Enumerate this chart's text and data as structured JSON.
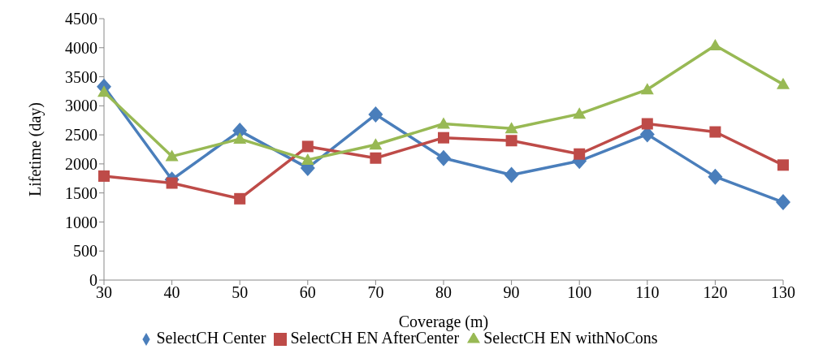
{
  "chart_data": {
    "type": "line",
    "xlabel": "Coverage (m)",
    "ylabel": "Lifetime (day)",
    "categories": [
      "30",
      "40",
      "50",
      "60",
      "70",
      "80",
      "90",
      "100",
      "110",
      "120",
      "130"
    ],
    "series": [
      {
        "name": "SelectCH Center",
        "color": "#4a7ebb",
        "marker": "diamond",
        "values": [
          3330,
          1730,
          2570,
          1930,
          2850,
          2100,
          1810,
          2050,
          2510,
          1780,
          1340
        ]
      },
      {
        "name": "SelectCH EN AfterCenter",
        "color": "#be4b48",
        "marker": "square",
        "values": [
          1790,
          1670,
          1400,
          2300,
          2100,
          2450,
          2400,
          2170,
          2690,
          2550,
          1980
        ]
      },
      {
        "name": "SelectCH EN withNoCons",
        "color": "#98b954",
        "marker": "triangle",
        "values": [
          3240,
          2130,
          2430,
          2070,
          2330,
          2690,
          2610,
          2860,
          3280,
          4040,
          3370
        ]
      }
    ],
    "ylim": [
      0,
      4500
    ],
    "yticks": [
      0,
      500,
      1000,
      1500,
      2000,
      2500,
      3000,
      3500,
      4000,
      4500
    ],
    "grid": false,
    "legend": "bottom"
  }
}
